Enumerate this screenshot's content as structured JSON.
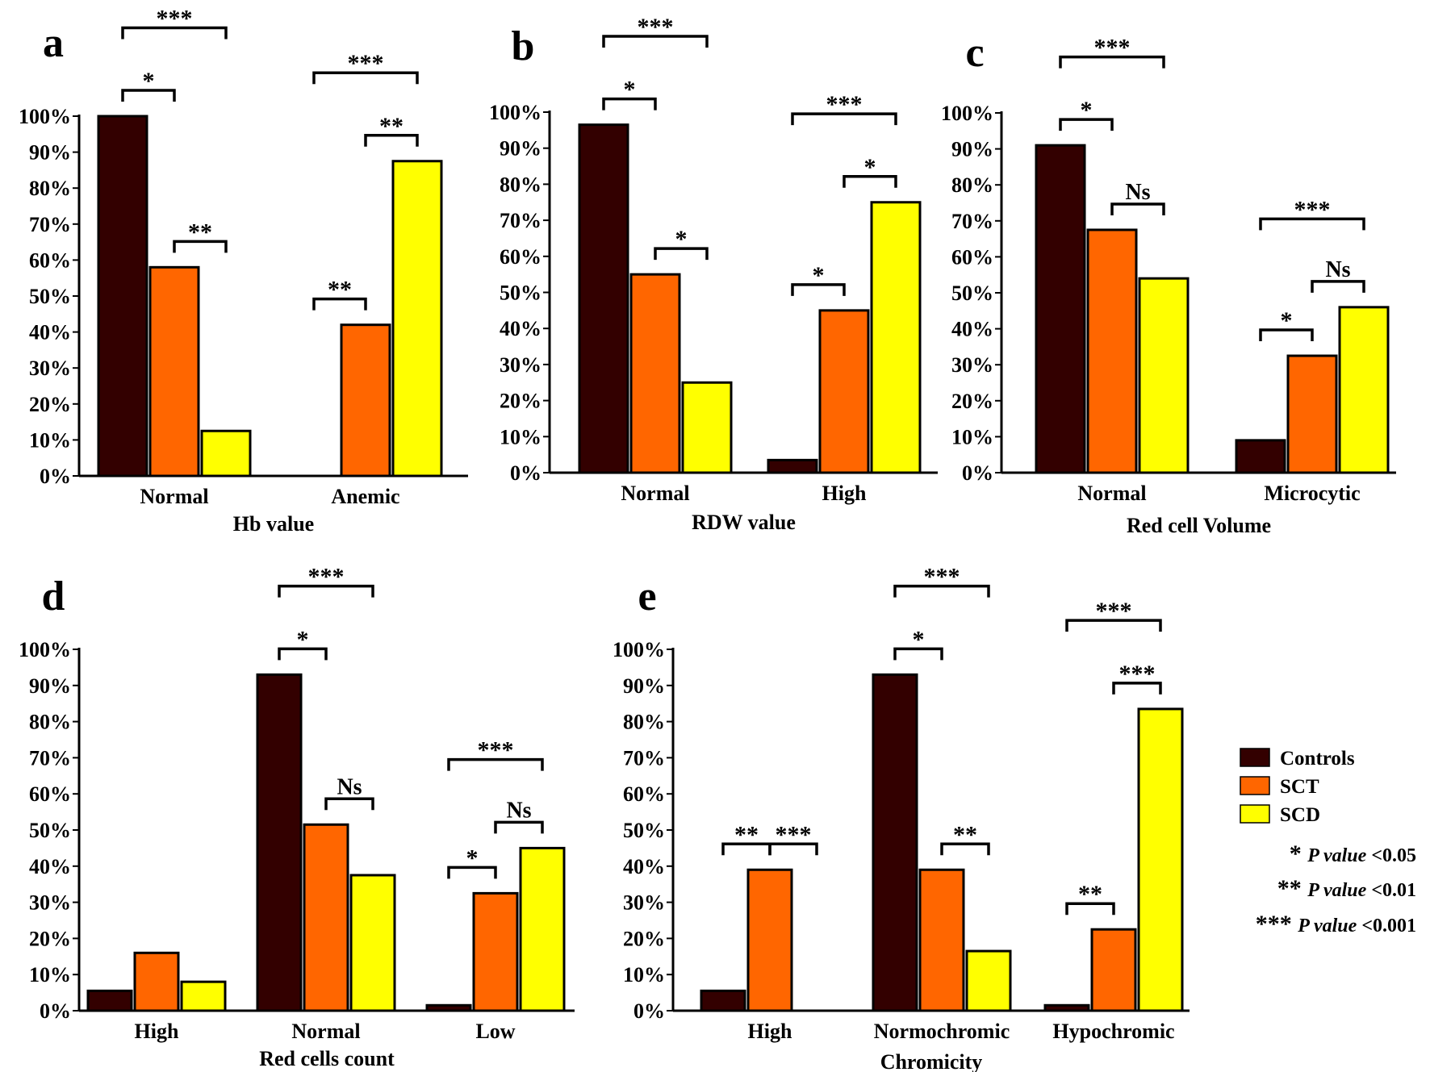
{
  "colors": {
    "Controls": "#330000",
    "SCT": "#ff6600",
    "SCD": "#ffff00"
  },
  "legend": {
    "entries": [
      "Controls",
      "SCT",
      "SCD"
    ],
    "notes": [
      {
        "stars": "*",
        "label": "P value",
        "thresh": "<0.05"
      },
      {
        "stars": "**",
        "label": "P value",
        "thresh": "<0.01"
      },
      {
        "stars": "***",
        "label": "P value",
        "thresh": "<0.001"
      }
    ]
  },
  "chart_data": [
    {
      "panel": "a",
      "type": "bar",
      "xlabel": "Hb value",
      "ylim": [
        0,
        100
      ],
      "yticks": [
        "0%",
        "10%",
        "20%",
        "30%",
        "40%",
        "50%",
        "60%",
        "70%",
        "80%",
        "90%",
        "100%"
      ],
      "categories": [
        "Normal",
        "Anemic"
      ],
      "series": [
        {
          "name": "Controls",
          "values": [
            100,
            0
          ]
        },
        {
          "name": "SCT",
          "values": [
            58,
            42
          ]
        },
        {
          "name": "SCD",
          "values": [
            12.5,
            87.5
          ]
        }
      ],
      "significance": [
        {
          "category": "Normal",
          "from": "Controls",
          "to": "SCT",
          "label": "*"
        },
        {
          "category": "Normal",
          "from": "Controls",
          "to": "SCD",
          "label": "***"
        },
        {
          "category": "Normal",
          "from": "SCT",
          "to": "SCD",
          "label": "**"
        },
        {
          "category": "Anemic",
          "from": "Controls",
          "to": "SCT",
          "label": "**"
        },
        {
          "category": "Anemic",
          "from": "Controls",
          "to": "SCD",
          "label": "***"
        },
        {
          "category": "Anemic",
          "from": "SCT",
          "to": "SCD",
          "label": "**"
        }
      ]
    },
    {
      "panel": "b",
      "type": "bar",
      "xlabel": "RDW value",
      "ylim": [
        0,
        100
      ],
      "yticks": [
        "0%",
        "10%",
        "20%",
        "30%",
        "40%",
        "50%",
        "60%",
        "70%",
        "80%",
        "90%",
        "100%"
      ],
      "categories": [
        "Normal",
        "High"
      ],
      "series": [
        {
          "name": "Controls",
          "values": [
            96.5,
            3.5
          ]
        },
        {
          "name": "SCT",
          "values": [
            55,
            45
          ]
        },
        {
          "name": "SCD",
          "values": [
            25,
            75
          ]
        }
      ],
      "significance": [
        {
          "category": "Normal",
          "from": "Controls",
          "to": "SCT",
          "label": "*"
        },
        {
          "category": "Normal",
          "from": "Controls",
          "to": "SCD",
          "label": "***"
        },
        {
          "category": "Normal",
          "from": "SCT",
          "to": "SCD",
          "label": "*"
        },
        {
          "category": "High",
          "from": "Controls",
          "to": "SCT",
          "label": "*"
        },
        {
          "category": "High",
          "from": "Controls",
          "to": "SCD",
          "label": "***"
        },
        {
          "category": "High",
          "from": "SCT",
          "to": "SCD",
          "label": "*"
        }
      ]
    },
    {
      "panel": "c",
      "type": "bar",
      "xlabel": "Red cell Volume",
      "ylim": [
        0,
        100
      ],
      "yticks": [
        "0%",
        "10%",
        "20%",
        "30%",
        "40%",
        "50%",
        "60%",
        "70%",
        "80%",
        "90%",
        "100%"
      ],
      "categories": [
        "Normal",
        "Microcytic"
      ],
      "series": [
        {
          "name": "Controls",
          "values": [
            91,
            9
          ]
        },
        {
          "name": "SCT",
          "values": [
            67.5,
            32.5
          ]
        },
        {
          "name": "SCD",
          "values": [
            54,
            46
          ]
        }
      ],
      "significance": [
        {
          "category": "Normal",
          "from": "Controls",
          "to": "SCT",
          "label": "*"
        },
        {
          "category": "Normal",
          "from": "Controls",
          "to": "SCD",
          "label": "***"
        },
        {
          "category": "Normal",
          "from": "SCT",
          "to": "SCD",
          "label": "Ns"
        },
        {
          "category": "Microcytic",
          "from": "Controls",
          "to": "SCT",
          "label": "*"
        },
        {
          "category": "Microcytic",
          "from": "Controls",
          "to": "SCD",
          "label": "***"
        },
        {
          "category": "Microcytic",
          "from": "SCT",
          "to": "SCD",
          "label": "Ns"
        }
      ]
    },
    {
      "panel": "d",
      "type": "bar",
      "xlabel": "Red cells count",
      "ylim": [
        0,
        100
      ],
      "yticks": [
        "0%",
        "10%",
        "20%",
        "30%",
        "40%",
        "50%",
        "60%",
        "70%",
        "80%",
        "90%",
        "100%"
      ],
      "categories": [
        "High",
        "Normal",
        "Low"
      ],
      "series": [
        {
          "name": "Controls",
          "values": [
            5.5,
            93,
            1.5
          ]
        },
        {
          "name": "SCT",
          "values": [
            16,
            51.5,
            32.5
          ]
        },
        {
          "name": "SCD",
          "values": [
            8,
            37.5,
            45
          ]
        }
      ],
      "significance": [
        {
          "category": "Normal",
          "from": "Controls",
          "to": "SCT",
          "label": "*"
        },
        {
          "category": "Normal",
          "from": "Controls",
          "to": "SCD",
          "label": "***"
        },
        {
          "category": "Normal",
          "from": "SCT",
          "to": "SCD",
          "label": "Ns"
        },
        {
          "category": "Low",
          "from": "Controls",
          "to": "SCT",
          "label": "*"
        },
        {
          "category": "Low",
          "from": "Controls",
          "to": "SCD",
          "label": "***"
        },
        {
          "category": "Low",
          "from": "SCT",
          "to": "SCD",
          "label": "Ns"
        }
      ]
    },
    {
      "panel": "e",
      "type": "bar",
      "xlabel": "Chromicity",
      "ylim": [
        0,
        100
      ],
      "yticks": [
        "0%",
        "10%",
        "20%",
        "30%",
        "40%",
        "50%",
        "60%",
        "70%",
        "80%",
        "90%",
        "100%"
      ],
      "categories": [
        "High",
        "Normochromic",
        "Hypochromic"
      ],
      "series": [
        {
          "name": "Controls",
          "values": [
            5.5,
            93,
            1.5
          ]
        },
        {
          "name": "SCT",
          "values": [
            39,
            39,
            22.5
          ]
        },
        {
          "name": "SCD",
          "values": [
            0,
            16.5,
            83.5
          ]
        }
      ],
      "significance": [
        {
          "category": "High",
          "from": "Controls",
          "to": "SCT",
          "label": "**"
        },
        {
          "category": "High",
          "from": "SCT",
          "to": "SCD",
          "label": "***"
        },
        {
          "category": "Normochromic",
          "from": "Controls",
          "to": "SCT",
          "label": "*"
        },
        {
          "category": "Normochromic",
          "from": "Controls",
          "to": "SCD",
          "label": "***"
        },
        {
          "category": "Normochromic",
          "from": "SCT",
          "to": "SCD",
          "label": "**"
        },
        {
          "category": "Hypochromic",
          "from": "Controls",
          "to": "SCT",
          "label": "**"
        },
        {
          "category": "Hypochromic",
          "from": "Controls",
          "to": "SCD",
          "label": "***"
        },
        {
          "category": "Hypochromic",
          "from": "SCT",
          "to": "SCD",
          "label": "***"
        }
      ]
    }
  ]
}
